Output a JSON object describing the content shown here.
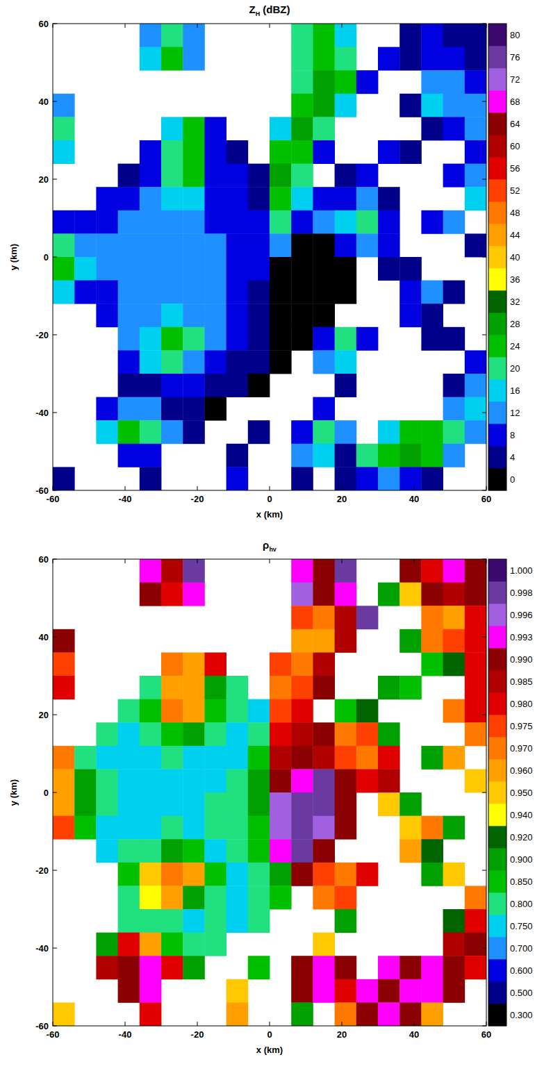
{
  "chart_data": [
    {
      "type": "heatmap",
      "title": "Z",
      "title_subscript": "H",
      "title_suffix": " (dBZ)",
      "x_label": "x (km)",
      "y_label": "y (km)",
      "xlim": [
        -60,
        60
      ],
      "ylim": [
        -60,
        60
      ],
      "xticks": [
        -60,
        -40,
        -20,
        0,
        20,
        40,
        60
      ],
      "yticks": [
        -60,
        -40,
        -20,
        0,
        20,
        40,
        60
      ],
      "cell_x": [
        -57,
        -51,
        -45,
        -39,
        -33,
        -27,
        -21,
        -15,
        -9,
        -3,
        3,
        9,
        15,
        21,
        27,
        33,
        39,
        45,
        51,
        57
      ],
      "cell_y": [
        57,
        51,
        45,
        39,
        33,
        27,
        21,
        15,
        9,
        3,
        -3,
        -9,
        -15,
        -21,
        -27,
        -33,
        -39,
        -45,
        -51,
        -57
      ],
      "cells": [
        [
          null,
          null,
          null,
          null,
          14,
          22,
          12,
          null,
          null,
          null,
          null,
          22,
          24,
          18,
          null,
          null,
          4,
          8,
          6,
          4
        ],
        [
          null,
          null,
          null,
          null,
          16,
          24,
          14,
          null,
          null,
          null,
          null,
          20,
          26,
          20,
          null,
          8,
          6,
          10,
          8,
          6
        ],
        [
          null,
          null,
          null,
          null,
          null,
          null,
          null,
          null,
          null,
          null,
          null,
          22,
          28,
          24,
          10,
          null,
          null,
          12,
          14,
          10
        ],
        [
          12,
          null,
          null,
          null,
          null,
          null,
          null,
          null,
          null,
          null,
          null,
          26,
          30,
          18,
          null,
          null,
          6,
          16,
          14,
          12
        ],
        [
          20,
          null,
          null,
          null,
          null,
          18,
          24,
          10,
          null,
          null,
          18,
          28,
          20,
          null,
          null,
          null,
          null,
          4,
          8,
          12
        ],
        [
          16,
          null,
          null,
          null,
          8,
          22,
          26,
          8,
          4,
          null,
          24,
          26,
          10,
          null,
          null,
          8,
          4,
          null,
          null,
          10
        ],
        [
          null,
          null,
          null,
          6,
          10,
          20,
          24,
          10,
          8,
          4,
          28,
          22,
          null,
          4,
          8,
          null,
          null,
          null,
          10,
          12
        ],
        [
          null,
          null,
          8,
          10,
          12,
          16,
          18,
          10,
          8,
          6,
          26,
          18,
          10,
          8,
          14,
          6,
          null,
          null,
          null,
          16
        ],
        [
          10,
          8,
          10,
          12,
          14,
          12,
          12,
          10,
          8,
          8,
          22,
          10,
          12,
          18,
          22,
          10,
          null,
          8,
          12,
          null
        ],
        [
          22,
          14,
          12,
          14,
          14,
          12,
          12,
          12,
          10,
          10,
          14,
          2,
          2,
          8,
          14,
          8,
          null,
          null,
          null,
          6
        ],
        [
          24,
          16,
          12,
          14,
          14,
          14,
          12,
          12,
          10,
          8,
          2,
          0,
          0,
          2,
          null,
          4,
          6,
          null,
          null,
          null
        ],
        [
          18,
          10,
          10,
          12,
          12,
          14,
          12,
          12,
          10,
          6,
          0,
          0,
          0,
          2,
          null,
          null,
          8,
          12,
          6,
          null
        ],
        [
          null,
          null,
          10,
          12,
          14,
          16,
          14,
          12,
          8,
          6,
          0,
          0,
          2,
          null,
          null,
          null,
          10,
          6,
          null,
          null
        ],
        [
          null,
          null,
          null,
          12,
          18,
          24,
          22,
          12,
          8,
          4,
          2,
          0,
          10,
          20,
          8,
          null,
          null,
          4,
          6,
          null
        ],
        [
          null,
          null,
          null,
          8,
          16,
          20,
          14,
          10,
          6,
          4,
          2,
          null,
          12,
          16,
          null,
          null,
          null,
          null,
          null,
          10
        ],
        [
          null,
          null,
          null,
          4,
          6,
          8,
          8,
          6,
          4,
          2,
          null,
          null,
          null,
          4,
          null,
          null,
          null,
          null,
          6,
          14
        ],
        [
          null,
          null,
          8,
          14,
          12,
          6,
          4,
          2,
          null,
          null,
          null,
          null,
          8,
          null,
          null,
          null,
          null,
          null,
          14,
          16
        ],
        [
          null,
          null,
          16,
          24,
          22,
          12,
          4,
          null,
          null,
          4,
          null,
          10,
          22,
          14,
          null,
          18,
          24,
          26,
          22,
          12
        ],
        [
          null,
          null,
          null,
          10,
          8,
          null,
          null,
          null,
          6,
          null,
          null,
          12,
          16,
          6,
          20,
          26,
          28,
          24,
          12,
          null
        ],
        [
          4,
          null,
          null,
          null,
          6,
          null,
          null,
          null,
          8,
          null,
          null,
          4,
          null,
          6,
          8,
          12,
          10,
          4,
          null,
          null
        ]
      ],
      "colorbar": {
        "ticks": [
          0,
          4,
          8,
          12,
          16,
          20,
          24,
          28,
          32,
          36,
          40,
          44,
          48,
          52,
          56,
          60,
          64,
          68,
          72,
          76,
          80
        ],
        "colors": [
          "#000000",
          "#00008b",
          "#0000e0",
          "#1e90ff",
          "#00d0f0",
          "#20e080",
          "#00c000",
          "#00a000",
          "#006400",
          "#ffff00",
          "#ffc800",
          "#ffa000",
          "#ff7800",
          "#ff4000",
          "#e00000",
          "#b00000",
          "#8b0000",
          "#ff00ff",
          "#a060e0",
          "#6a3aa0",
          "#3c0a6e"
        ]
      }
    },
    {
      "type": "heatmap",
      "title": "ρ",
      "title_subscript": "hv",
      "title_suffix": "",
      "x_label": "x (km)",
      "y_label": "y (km)",
      "xlim": [
        -60,
        60
      ],
      "ylim": [
        -60,
        60
      ],
      "xticks": [
        -60,
        -40,
        -20,
        0,
        20,
        40,
        60
      ],
      "yticks": [
        -60,
        -40,
        -20,
        0,
        20,
        40,
        60
      ],
      "cell_x": [
        -57,
        -51,
        -45,
        -39,
        -33,
        -27,
        -21,
        -15,
        -9,
        -3,
        3,
        9,
        15,
        21,
        27,
        33,
        39,
        45,
        51,
        57
      ],
      "cell_y": [
        57,
        51,
        45,
        39,
        33,
        27,
        21,
        15,
        9,
        3,
        -3,
        -9,
        -15,
        -21,
        -27,
        -33,
        -39,
        -45,
        -51,
        -57
      ],
      "cells": [
        [
          null,
          null,
          null,
          null,
          0.995,
          0.985,
          0.998,
          null,
          null,
          null,
          null,
          0.993,
          0.99,
          0.998,
          null,
          null,
          0.99,
          0.98,
          0.995,
          0.99
        ],
        [
          null,
          null,
          null,
          null,
          0.99,
          0.98,
          0.995,
          null,
          null,
          null,
          null,
          0.996,
          0.99,
          0.995,
          null,
          0.9,
          0.95,
          0.99,
          0.985,
          0.99
        ],
        [
          null,
          null,
          null,
          null,
          null,
          null,
          null,
          null,
          null,
          null,
          null,
          0.975,
          0.97,
          0.985,
          0.998,
          null,
          null,
          0.97,
          0.96,
          0.98
        ],
        [
          0.99,
          null,
          null,
          null,
          null,
          null,
          null,
          null,
          null,
          null,
          null,
          0.965,
          0.96,
          0.985,
          null,
          null,
          0.9,
          0.97,
          0.975,
          0.98
        ],
        [
          0.975,
          null,
          null,
          null,
          null,
          0.97,
          0.965,
          0.98,
          null,
          null,
          0.975,
          0.97,
          0.985,
          null,
          null,
          null,
          null,
          0.85,
          0.93,
          0.98
        ],
        [
          0.98,
          null,
          null,
          null,
          0.8,
          0.965,
          0.96,
          0.9,
          0.82,
          null,
          0.97,
          0.975,
          0.99,
          null,
          null,
          0.9,
          0.85,
          null,
          null,
          0.98
        ],
        [
          null,
          null,
          null,
          0.82,
          0.85,
          0.97,
          0.965,
          0.88,
          0.8,
          0.78,
          0.975,
          0.98,
          null,
          0.85,
          0.93,
          null,
          null,
          null,
          0.97,
          0.98
        ],
        [
          null,
          null,
          0.8,
          0.78,
          0.8,
          0.85,
          0.9,
          0.82,
          0.78,
          0.8,
          0.98,
          0.985,
          0.99,
          0.97,
          0.975,
          0.9,
          null,
          null,
          null,
          0.97
        ],
        [
          0.97,
          0.82,
          0.78,
          0.76,
          0.78,
          0.8,
          0.78,
          0.76,
          0.78,
          0.85,
          0.985,
          0.99,
          0.985,
          0.975,
          0.97,
          0.98,
          null,
          0.9,
          0.96,
          null
        ],
        [
          0.965,
          0.9,
          0.8,
          0.78,
          0.76,
          0.78,
          0.76,
          0.78,
          0.8,
          0.9,
          0.99,
          0.995,
          0.998,
          0.99,
          0.98,
          0.985,
          null,
          null,
          null,
          0.95
        ],
        [
          0.96,
          0.9,
          0.8,
          0.78,
          0.76,
          0.78,
          0.78,
          0.8,
          0.82,
          0.9,
          0.996,
          0.998,
          0.998,
          0.99,
          null,
          0.95,
          0.9,
          null,
          null,
          null
        ],
        [
          0.975,
          0.85,
          0.78,
          0.76,
          0.78,
          0.8,
          0.78,
          0.8,
          0.8,
          0.88,
          0.997,
          0.998,
          0.996,
          0.99,
          null,
          null,
          0.95,
          0.97,
          0.9,
          null
        ],
        [
          null,
          null,
          0.78,
          0.8,
          0.82,
          0.9,
          0.88,
          0.78,
          0.8,
          0.85,
          0.995,
          0.998,
          0.99,
          null,
          null,
          null,
          0.96,
          0.92,
          null,
          null
        ],
        [
          null,
          null,
          null,
          0.85,
          0.95,
          0.97,
          0.965,
          0.85,
          0.78,
          0.8,
          0.9,
          0.99,
          0.975,
          0.97,
          0.98,
          null,
          null,
          0.9,
          0.95,
          null
        ],
        [
          null,
          null,
          null,
          0.8,
          0.94,
          0.96,
          0.9,
          0.8,
          0.78,
          0.8,
          0.85,
          null,
          0.97,
          0.975,
          null,
          null,
          null,
          null,
          null,
          0.97
        ],
        [
          null,
          null,
          null,
          0.8,
          0.82,
          0.8,
          0.78,
          0.8,
          0.78,
          0.82,
          null,
          null,
          null,
          0.9,
          null,
          null,
          null,
          null,
          0.93,
          0.98
        ],
        [
          null,
          null,
          0.9,
          0.98,
          0.96,
          0.85,
          0.8,
          0.8,
          null,
          null,
          null,
          null,
          0.95,
          null,
          null,
          null,
          null,
          null,
          0.985,
          0.99
        ],
        [
          null,
          null,
          0.985,
          0.99,
          0.993,
          0.98,
          0.9,
          null,
          null,
          0.85,
          null,
          0.99,
          0.993,
          0.99,
          null,
          0.993,
          0.99,
          0.995,
          0.99,
          0.98
        ],
        [
          null,
          null,
          null,
          0.99,
          0.995,
          null,
          null,
          null,
          0.95,
          null,
          null,
          0.99,
          0.995,
          0.98,
          0.993,
          0.99,
          0.993,
          0.995,
          0.99,
          null
        ],
        [
          0.95,
          null,
          null,
          null,
          0.98,
          null,
          null,
          null,
          0.96,
          null,
          null,
          0.9,
          null,
          0.97,
          0.99,
          0.995,
          0.99,
          0.96,
          null,
          null
        ]
      ],
      "colorbar": {
        "ticks": [
          {
            "value": 0.3,
            "label": "0.300"
          },
          {
            "value": 0.5,
            "label": "0.500"
          },
          {
            "value": 0.6,
            "label": "0.600"
          },
          {
            "value": 0.7,
            "label": "0.700"
          },
          {
            "value": 0.75,
            "label": "0.750"
          },
          {
            "value": 0.8,
            "label": "0.800"
          },
          {
            "value": 0.85,
            "label": "0.850"
          },
          {
            "value": 0.9,
            "label": "0.900"
          },
          {
            "value": 0.92,
            "label": "0.920"
          },
          {
            "value": 0.94,
            "label": "0.940"
          },
          {
            "value": 0.95,
            "label": "0.950"
          },
          {
            "value": 0.96,
            "label": "0.960"
          },
          {
            "value": 0.97,
            "label": "0.970"
          },
          {
            "value": 0.975,
            "label": "0.975"
          },
          {
            "value": 0.98,
            "label": "0.980"
          },
          {
            "value": 0.985,
            "label": "0.985"
          },
          {
            "value": 0.99,
            "label": "0.990"
          },
          {
            "value": 0.993,
            "label": "0.993"
          },
          {
            "value": 0.996,
            "label": "0.996"
          },
          {
            "value": 0.998,
            "label": "0.998"
          },
          {
            "value": 1.0,
            "label": "1.000"
          }
        ],
        "colors": [
          "#000000",
          "#00008b",
          "#0000e0",
          "#1e90ff",
          "#00d0f0",
          "#20e080",
          "#00c000",
          "#00a000",
          "#006400",
          "#ffff00",
          "#ffc800",
          "#ffa000",
          "#ff7800",
          "#ff4000",
          "#e00000",
          "#b00000",
          "#8b0000",
          "#ff00ff",
          "#a060e0",
          "#6a3aa0",
          "#3c0a6e"
        ]
      }
    }
  ]
}
